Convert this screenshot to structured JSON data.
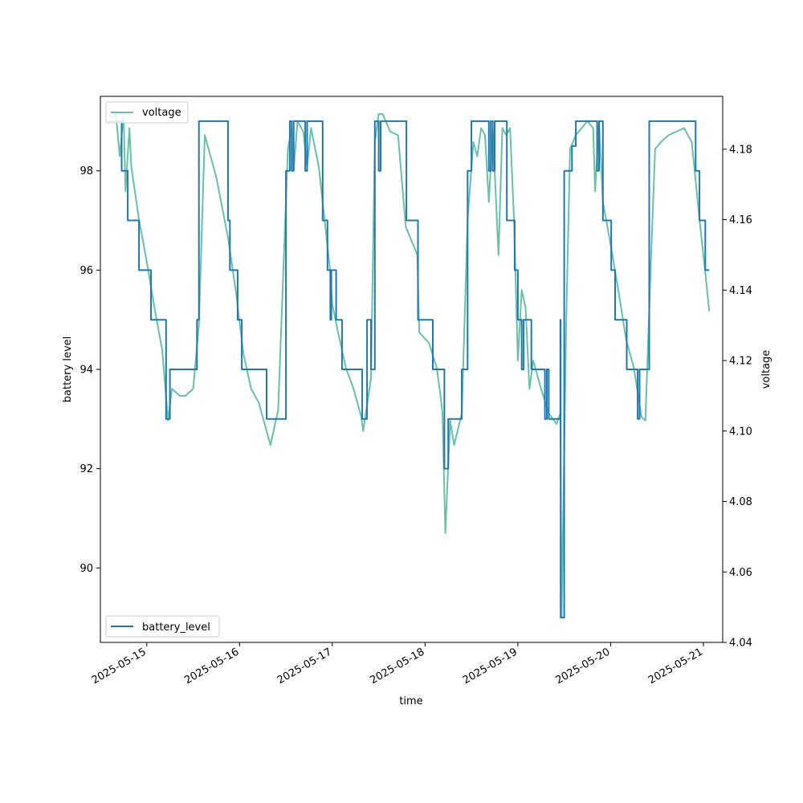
{
  "chart_data": {
    "type": "line",
    "xlabel": "time",
    "ylabel_left": "battery level",
    "ylabel_right": "voltage",
    "x_ticks": [
      "2025-05-15",
      "2025-05-16",
      "2025-05-17",
      "2025-05-18",
      "2025-05-19",
      "2025-05-20",
      "2025-05-21"
    ],
    "ylim_left": [
      88.5,
      99.5
    ],
    "yticks_left": [
      90,
      92,
      94,
      96,
      98
    ],
    "ylim_right": [
      4.04,
      4.195
    ],
    "yticks_right": [
      4.04,
      4.06,
      4.08,
      4.1,
      4.12,
      4.14,
      4.16,
      4.18
    ],
    "grid": false,
    "legends": [
      {
        "series": "voltage",
        "placement": "upper-left"
      },
      {
        "series": "battery_level",
        "placement": "lower-left"
      }
    ],
    "colors": {
      "battery_level": "#1f77b4",
      "voltage": "#66c2a5"
    },
    "series": [
      {
        "name": "battery_level",
        "axis": "left",
        "points": [
          [
            "2025-05-14 14:00",
            99
          ],
          [
            "2025-05-14 17:00",
            99
          ],
          [
            "2025-05-14 17:30",
            98
          ],
          [
            "2025-05-14 19:00",
            98
          ],
          [
            "2025-05-14 19:05",
            97
          ],
          [
            "2025-05-14 22:00",
            96
          ],
          [
            "2025-05-15 01:00",
            96
          ],
          [
            "2025-05-15 01:05",
            95
          ],
          [
            "2025-05-15 04:30",
            95
          ],
          [
            "2025-05-15 05:00",
            93
          ],
          [
            "2025-05-15 06:00",
            94
          ],
          [
            "2025-05-15 11:30",
            94
          ],
          [
            "2025-05-15 13:00",
            95
          ],
          [
            "2025-05-15 13:30",
            99
          ],
          [
            "2025-05-15 15:30",
            99
          ],
          [
            "2025-05-15 21:00",
            97
          ],
          [
            "2025-05-15 21:30",
            96
          ],
          [
            "2025-05-15 23:00",
            96
          ],
          [
            "2025-05-15 23:30",
            95
          ],
          [
            "2025-05-16 00:30",
            95
          ],
          [
            "2025-05-16 00:35",
            94
          ],
          [
            "2025-05-16 06:30",
            94
          ],
          [
            "2025-05-16 07:00",
            93
          ],
          [
            "2025-05-16 09:00",
            93
          ],
          [
            "2025-05-16 12:00",
            98
          ],
          [
            "2025-05-16 13:00",
            99
          ],
          [
            "2025-05-16 13:30",
            98
          ],
          [
            "2025-05-16 14:00",
            99
          ],
          [
            "2025-05-16 16:30",
            99
          ],
          [
            "2025-05-16 17:00",
            98
          ],
          [
            "2025-05-16 17:30",
            99
          ],
          [
            "2025-05-16 18:00",
            99
          ],
          [
            "2025-05-16 21:30",
            97
          ],
          [
            "2025-05-16 22:30",
            97
          ],
          [
            "2025-05-16 22:45",
            96
          ],
          [
            "2025-05-16 23:30",
            95
          ],
          [
            "2025-05-16 23:45",
            96
          ],
          [
            "2025-05-17 00:30",
            96
          ],
          [
            "2025-05-17 01:00",
            95
          ],
          [
            "2025-05-17 02:00",
            95
          ],
          [
            "2025-05-17 02:30",
            94
          ],
          [
            "2025-05-17 07:30",
            94
          ],
          [
            "2025-05-17 07:45",
            93
          ],
          [
            "2025-05-17 08:30",
            93
          ],
          [
            "2025-05-17 09:00",
            95
          ],
          [
            "2025-05-17 10:00",
            94
          ],
          [
            "2025-05-17 11:00",
            99
          ],
          [
            "2025-05-17 12:00",
            98
          ],
          [
            "2025-05-17 12:30",
            99
          ],
          [
            "2025-05-17 19:00",
            99
          ],
          [
            "2025-05-17 19:10",
            97
          ],
          [
            "2025-05-17 22:00",
            97
          ],
          [
            "2025-05-17 22:10",
            95
          ],
          [
            "2025-05-18 01:00",
            95
          ],
          [
            "2025-05-18 02:00",
            94
          ],
          [
            "2025-05-18 04:30",
            94
          ],
          [
            "2025-05-18 05:00",
            92
          ],
          [
            "2025-05-18 06:00",
            93
          ],
          [
            "2025-05-18 09:00",
            93
          ],
          [
            "2025-05-18 09:30",
            94
          ],
          [
            "2025-05-18 11:00",
            98
          ],
          [
            "2025-05-18 12:00",
            99
          ],
          [
            "2025-05-18 16:00",
            99
          ],
          [
            "2025-05-18 16:30",
            98
          ],
          [
            "2025-05-18 17:00",
            99
          ],
          [
            "2025-05-18 17:30",
            98
          ],
          [
            "2025-05-18 18:00",
            99
          ],
          [
            "2025-05-18 21:00",
            99
          ],
          [
            "2025-05-18 21:10",
            97
          ],
          [
            "2025-05-18 23:00",
            97
          ],
          [
            "2025-05-18 23:10",
            96
          ],
          [
            "2025-05-19 00:00",
            95
          ],
          [
            "2025-05-19 00:30",
            95
          ],
          [
            "2025-05-19 01:00",
            94
          ],
          [
            "2025-05-19 01:30",
            95
          ],
          [
            "2025-05-19 02:00",
            95
          ],
          [
            "2025-05-19 03:30",
            94
          ],
          [
            "2025-05-19 06:00",
            94
          ],
          [
            "2025-05-19 07:00",
            93
          ],
          [
            "2025-05-19 07:30",
            94
          ],
          [
            "2025-05-19 08:00",
            93
          ],
          [
            "2025-05-19 10:30",
            93
          ],
          [
            "2025-05-19 11:00",
            95
          ],
          [
            "2025-05-19 11:05",
            89
          ],
          [
            "2025-05-19 12:00",
            98
          ],
          [
            "2025-05-19 14:00",
            98.5
          ],
          [
            "2025-05-19 15:00",
            99
          ],
          [
            "2025-05-19 20:00",
            99
          ],
          [
            "2025-05-19 20:30",
            98
          ],
          [
            "2025-05-19 21:00",
            99
          ],
          [
            "2025-05-19 21:30",
            99
          ],
          [
            "2025-05-19 22:00",
            97
          ],
          [
            "2025-05-20 00:00",
            97
          ],
          [
            "2025-05-20 00:10",
            96
          ],
          [
            "2025-05-20 01:00",
            96
          ],
          [
            "2025-05-20 01:10",
            95
          ],
          [
            "2025-05-20 04:00",
            95
          ],
          [
            "2025-05-20 04:10",
            94
          ],
          [
            "2025-05-20 05:30",
            94
          ],
          [
            "2025-05-20 07:00",
            93
          ],
          [
            "2025-05-20 07:30",
            94
          ],
          [
            "2025-05-20 08:00",
            94
          ],
          [
            "2025-05-20 10:00",
            99
          ],
          [
            "2025-05-20 20:00",
            99
          ],
          [
            "2025-05-20 22:00",
            98
          ],
          [
            "2025-05-20 23:00",
            97
          ],
          [
            "2025-05-21 00:00",
            97
          ],
          [
            "2025-05-21 00:30",
            96
          ],
          [
            "2025-05-21 01:30",
            96
          ]
        ]
      },
      {
        "name": "voltage",
        "axis": "right",
        "points": [
          [
            "2025-05-14 14:00",
            4.19
          ],
          [
            "2025-05-14 15:00",
            4.189
          ],
          [
            "2025-05-14 16:00",
            4.19
          ],
          [
            "2025-05-14 17:00",
            4.178
          ],
          [
            "2025-05-14 18:00",
            4.19
          ],
          [
            "2025-05-14 18:30",
            4.168
          ],
          [
            "2025-05-14 19:30",
            4.186
          ],
          [
            "2025-05-14 20:00",
            4.175
          ],
          [
            "2025-05-14 22:00",
            4.16
          ],
          [
            "2025-05-15 00:00",
            4.148
          ],
          [
            "2025-05-15 02:00",
            4.135
          ],
          [
            "2025-05-15 04:00",
            4.123
          ],
          [
            "2025-05-15 05:30",
            4.103
          ],
          [
            "2025-05-15 06:30",
            4.112
          ],
          [
            "2025-05-15 08:30",
            4.11
          ],
          [
            "2025-05-15 10:00",
            4.11
          ],
          [
            "2025-05-15 12:00",
            4.112
          ],
          [
            "2025-05-15 13:30",
            4.13
          ],
          [
            "2025-05-15 15:00",
            4.184
          ],
          [
            "2025-05-15 18:00",
            4.172
          ],
          [
            "2025-05-15 21:00",
            4.155
          ],
          [
            "2025-05-15 23:00",
            4.14
          ],
          [
            "2025-05-16 01:00",
            4.122
          ],
          [
            "2025-05-16 03:00",
            4.112
          ],
          [
            "2025-05-16 05:00",
            4.108
          ],
          [
            "2025-05-16 07:00",
            4.1
          ],
          [
            "2025-05-16 08:00",
            4.096
          ],
          [
            "2025-05-16 10:00",
            4.106
          ],
          [
            "2025-05-16 11:30",
            4.15
          ],
          [
            "2025-05-16 12:30",
            4.18
          ],
          [
            "2025-05-16 13:30",
            4.186
          ],
          [
            "2025-05-16 14:00",
            4.174
          ],
          [
            "2025-05-16 15:00",
            4.188
          ],
          [
            "2025-05-16 16:30",
            4.185
          ],
          [
            "2025-05-16 17:30",
            4.175
          ],
          [
            "2025-05-16 18:30",
            4.186
          ],
          [
            "2025-05-16 20:30",
            4.175
          ],
          [
            "2025-05-16 22:00",
            4.16
          ],
          [
            "2025-05-16 23:30",
            4.145
          ],
          [
            "2025-05-17 00:00",
            4.136
          ],
          [
            "2025-05-17 01:30",
            4.128
          ],
          [
            "2025-05-17 03:30",
            4.118
          ],
          [
            "2025-05-17 05:30",
            4.112
          ],
          [
            "2025-05-17 07:30",
            4.104
          ],
          [
            "2025-05-17 08:00",
            4.1
          ],
          [
            "2025-05-17 10:00",
            4.115
          ],
          [
            "2025-05-17 11:00",
            4.182
          ],
          [
            "2025-05-17 12:00",
            4.19
          ],
          [
            "2025-05-17 13:00",
            4.19
          ],
          [
            "2025-05-17 15:00",
            4.185
          ],
          [
            "2025-05-17 17:00",
            4.184
          ],
          [
            "2025-05-17 19:00",
            4.158
          ],
          [
            "2025-05-17 22:00",
            4.15
          ],
          [
            "2025-05-17 22:30",
            4.128
          ],
          [
            "2025-05-18 01:00",
            4.125
          ],
          [
            "2025-05-18 03:00",
            4.118
          ],
          [
            "2025-05-18 04:00",
            4.11
          ],
          [
            "2025-05-18 04:30",
            4.105
          ],
          [
            "2025-05-18 05:15",
            4.071
          ],
          [
            "2025-05-18 06:30",
            4.103
          ],
          [
            "2025-05-18 07:30",
            4.096
          ],
          [
            "2025-05-18 09:30",
            4.105
          ],
          [
            "2025-05-18 11:00",
            4.16
          ],
          [
            "2025-05-18 12:30",
            4.182
          ],
          [
            "2025-05-18 13:30",
            4.178
          ],
          [
            "2025-05-18 14:30",
            4.186
          ],
          [
            "2025-05-18 15:30",
            4.184
          ],
          [
            "2025-05-18 16:30",
            4.165
          ],
          [
            "2025-05-18 17:30",
            4.186
          ],
          [
            "2025-05-18 19:00",
            4.15
          ],
          [
            "2025-05-18 20:00",
            4.186
          ],
          [
            "2025-05-18 21:00",
            4.184
          ],
          [
            "2025-05-18 22:00",
            4.186
          ],
          [
            "2025-05-18 23:00",
            4.16
          ],
          [
            "2025-05-19 00:00",
            4.12
          ],
          [
            "2025-05-19 01:00",
            4.14
          ],
          [
            "2025-05-19 02:00",
            4.135
          ],
          [
            "2025-05-19 03:00",
            4.112
          ],
          [
            "2025-05-19 04:00",
            4.12
          ],
          [
            "2025-05-19 06:00",
            4.112
          ],
          [
            "2025-05-19 08:00",
            4.105
          ],
          [
            "2025-05-19 10:00",
            4.102
          ],
          [
            "2025-05-19 11:00",
            4.105
          ],
          [
            "2025-05-19 11:20",
            4.047
          ],
          [
            "2025-05-19 12:30",
            4.13
          ],
          [
            "2025-05-19 13:30",
            4.18
          ],
          [
            "2025-05-19 15:00",
            4.184
          ],
          [
            "2025-05-19 16:30",
            4.186
          ],
          [
            "2025-05-19 18:00",
            4.188
          ],
          [
            "2025-05-19 19:30",
            4.186
          ],
          [
            "2025-05-19 20:00",
            4.168
          ],
          [
            "2025-05-19 21:00",
            4.188
          ],
          [
            "2025-05-19 22:00",
            4.165
          ],
          [
            "2025-05-20 00:00",
            4.153
          ],
          [
            "2025-05-20 02:00",
            4.14
          ],
          [
            "2025-05-20 04:00",
            4.126
          ],
          [
            "2025-05-20 06:00",
            4.118
          ],
          [
            "2025-05-20 08:00",
            4.104
          ],
          [
            "2025-05-20 09:00",
            4.103
          ],
          [
            "2025-05-20 10:30",
            4.15
          ],
          [
            "2025-05-20 11:30",
            4.18
          ],
          [
            "2025-05-20 13:00",
            4.182
          ],
          [
            "2025-05-20 15:00",
            4.184
          ],
          [
            "2025-05-20 17:00",
            4.185
          ],
          [
            "2025-05-20 19:00",
            4.186
          ],
          [
            "2025-05-20 21:00",
            4.182
          ],
          [
            "2025-05-20 23:00",
            4.16
          ],
          [
            "2025-05-21 00:30",
            4.145
          ],
          [
            "2025-05-21 01:30",
            4.134
          ]
        ]
      }
    ]
  }
}
